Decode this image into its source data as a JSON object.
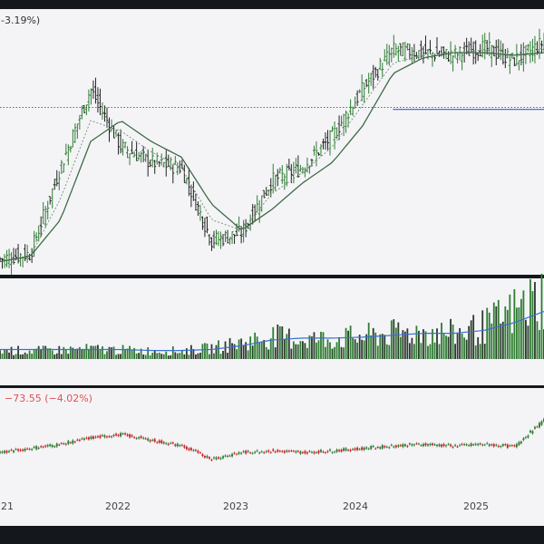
{
  "header": {
    "price_change_pct": "-3.19%)",
    "indicator_change": "−73.55 (−4.02%)"
  },
  "colors": {
    "background": "#14181c",
    "pane": "#f4f4f7",
    "up": "#2f7d32",
    "down": "#c62828",
    "ma_line": "#3d6b45",
    "ma_dotted": "#7a9a80",
    "support_line": "#3a5fc8",
    "reference_line": "#555555",
    "volume_avg": "#3b6fd6",
    "indicator_text": "#e05050"
  },
  "chart_data": [
    {
      "type": "bar",
      "pane": "price",
      "x": [
        "2021-01",
        "2021-04",
        "2021-07",
        "2021-10",
        "2022-01",
        "2022-04",
        "2022-07",
        "2022-10",
        "2023-01",
        "2023-04",
        "2023-07",
        "2023-10",
        "2024-01",
        "2024-04",
        "2024-07",
        "2024-10",
        "2025-01",
        "2025-04",
        "2025-07"
      ],
      "series": [
        {
          "style": "ohlc",
          "close": [
            5,
            7,
            40,
            70,
            48,
            42,
            40,
            12,
            15,
            35,
            40,
            52,
            70,
            85,
            84,
            83,
            86,
            81,
            88
          ]
        },
        {
          "style": "moving-average",
          "values": [
            4,
            6,
            20,
            50,
            58,
            50,
            44,
            26,
            16,
            24,
            34,
            42,
            56,
            76,
            82,
            84,
            84,
            83,
            84
          ]
        },
        {
          "style": "dotted-average",
          "values": [
            4,
            6,
            28,
            58,
            54,
            46,
            40,
            20,
            16,
            30,
            38,
            48,
            64,
            80,
            83,
            84,
            85,
            82,
            86
          ]
        }
      ],
      "ylim": [
        0,
        100
      ],
      "reference_levels": [
        {
          "style": "dotted",
          "value": 63
        },
        {
          "style": "solid",
          "value": 64,
          "from": "2024-04"
        }
      ]
    },
    {
      "type": "bar",
      "pane": "volume",
      "x": [
        "2021-01",
        "2021-04",
        "2021-07",
        "2021-10",
        "2022-01",
        "2022-04",
        "2022-07",
        "2022-10",
        "2023-01",
        "2023-04",
        "2023-07",
        "2023-10",
        "2024-01",
        "2024-04",
        "2024-07",
        "2024-10",
        "2025-01",
        "2025-04",
        "2025-07"
      ],
      "series": [
        {
          "style": "volume-bars",
          "values": [
            10,
            9,
            10,
            11,
            10,
            9,
            9,
            12,
            18,
            25,
            22,
            22,
            25,
            28,
            30,
            28,
            35,
            52,
            70
          ]
        },
        {
          "style": "volume-average",
          "values": [
            10,
            10,
            10,
            10,
            10,
            9,
            9,
            10,
            14,
            20,
            22,
            22,
            23,
            25,
            27,
            27,
            30,
            38,
            50
          ]
        }
      ],
      "ylim": [
        0,
        80
      ]
    },
    {
      "type": "line",
      "pane": "indicator",
      "x": [
        "2021-01",
        "2021-04",
        "2021-07",
        "2021-10",
        "2022-01",
        "2022-04",
        "2022-07",
        "2022-10",
        "2023-01",
        "2023-04",
        "2023-07",
        "2023-10",
        "2024-01",
        "2024-04",
        "2024-07",
        "2024-10",
        "2025-01",
        "2025-04",
        "2025-07"
      ],
      "series": [
        {
          "style": "ohlc",
          "close": [
            40,
            45,
            50,
            58,
            62,
            55,
            48,
            32,
            40,
            42,
            40,
            42,
            45,
            48,
            50,
            48,
            50,
            47,
            80
          ]
        }
      ],
      "ylim": [
        0,
        100
      ],
      "tick_labels": [
        "21",
        "2022",
        "2023",
        "2024",
        "2025"
      ]
    }
  ]
}
